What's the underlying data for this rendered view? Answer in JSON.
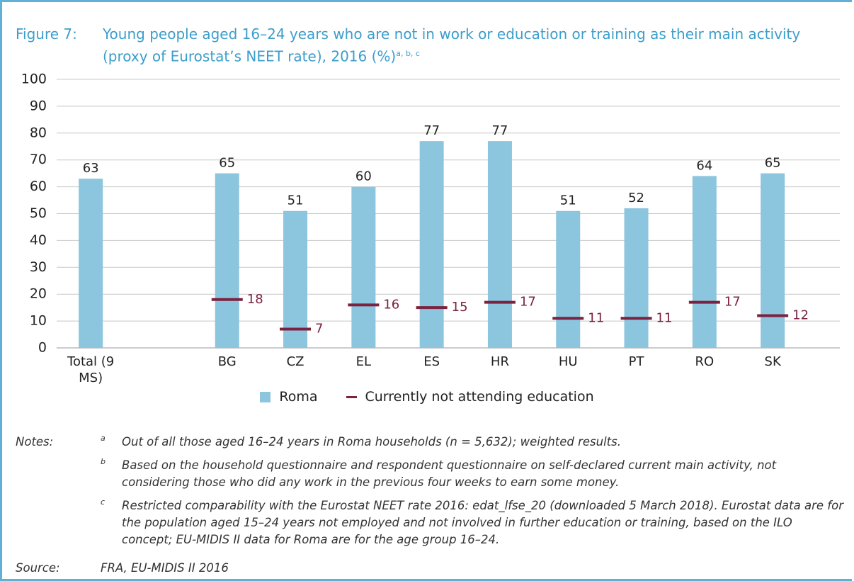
{
  "chart_data": {
    "type": "bar",
    "figure_label": "Figure 7:",
    "title": "Young people aged 16–24 years who are not in work or education or training as their main activity (proxy of Eurostat’s NEET rate), 2016 (%)",
    "title_superscript": "a, b, c",
    "categories": [
      "Total (9 MS)",
      null,
      "BG",
      "CZ",
      "EL",
      "ES",
      "HR",
      "HU",
      "PT",
      "RO",
      "SK"
    ],
    "series": [
      {
        "name": "Roma",
        "type": "bar",
        "color": "#8cc5de",
        "values": [
          63,
          null,
          65,
          51,
          60,
          77,
          77,
          51,
          52,
          64,
          65
        ]
      },
      {
        "name": "Currently not attending education",
        "type": "marker",
        "color": "#7b2241",
        "values": [
          null,
          null,
          18,
          7,
          16,
          15,
          17,
          11,
          11,
          17,
          12
        ]
      }
    ],
    "ylim": [
      0,
      100
    ],
    "yticks": [
      0,
      10,
      20,
      30,
      40,
      50,
      60,
      70,
      80,
      90,
      100
    ],
    "grid": true,
    "legend": "bottom",
    "notes_label": "Notes:",
    "notes": [
      {
        "marker": "a",
        "text": "Out of all those aged 16–24 years in Roma households (n = 5,632); weighted results."
      },
      {
        "marker": "b",
        "text": "Based on the household questionnaire and respondent questionnaire on self-declared current main activity, not considering those who did any work in the previous four weeks to earn some money."
      },
      {
        "marker": "c",
        "text": "Restricted comparability with the Eurostat NEET rate 2016: edat_lfse_20 (downloaded 5 March 2018). Eurostat data are for the population aged 15–24 years not employed and not involved in further education or training, based on the ILO concept; EU-MIDIS II data for Roma are for the age group 16–24."
      }
    ],
    "source_label": "Source:",
    "source": "FRA, EU-MIDIS II 2016"
  }
}
